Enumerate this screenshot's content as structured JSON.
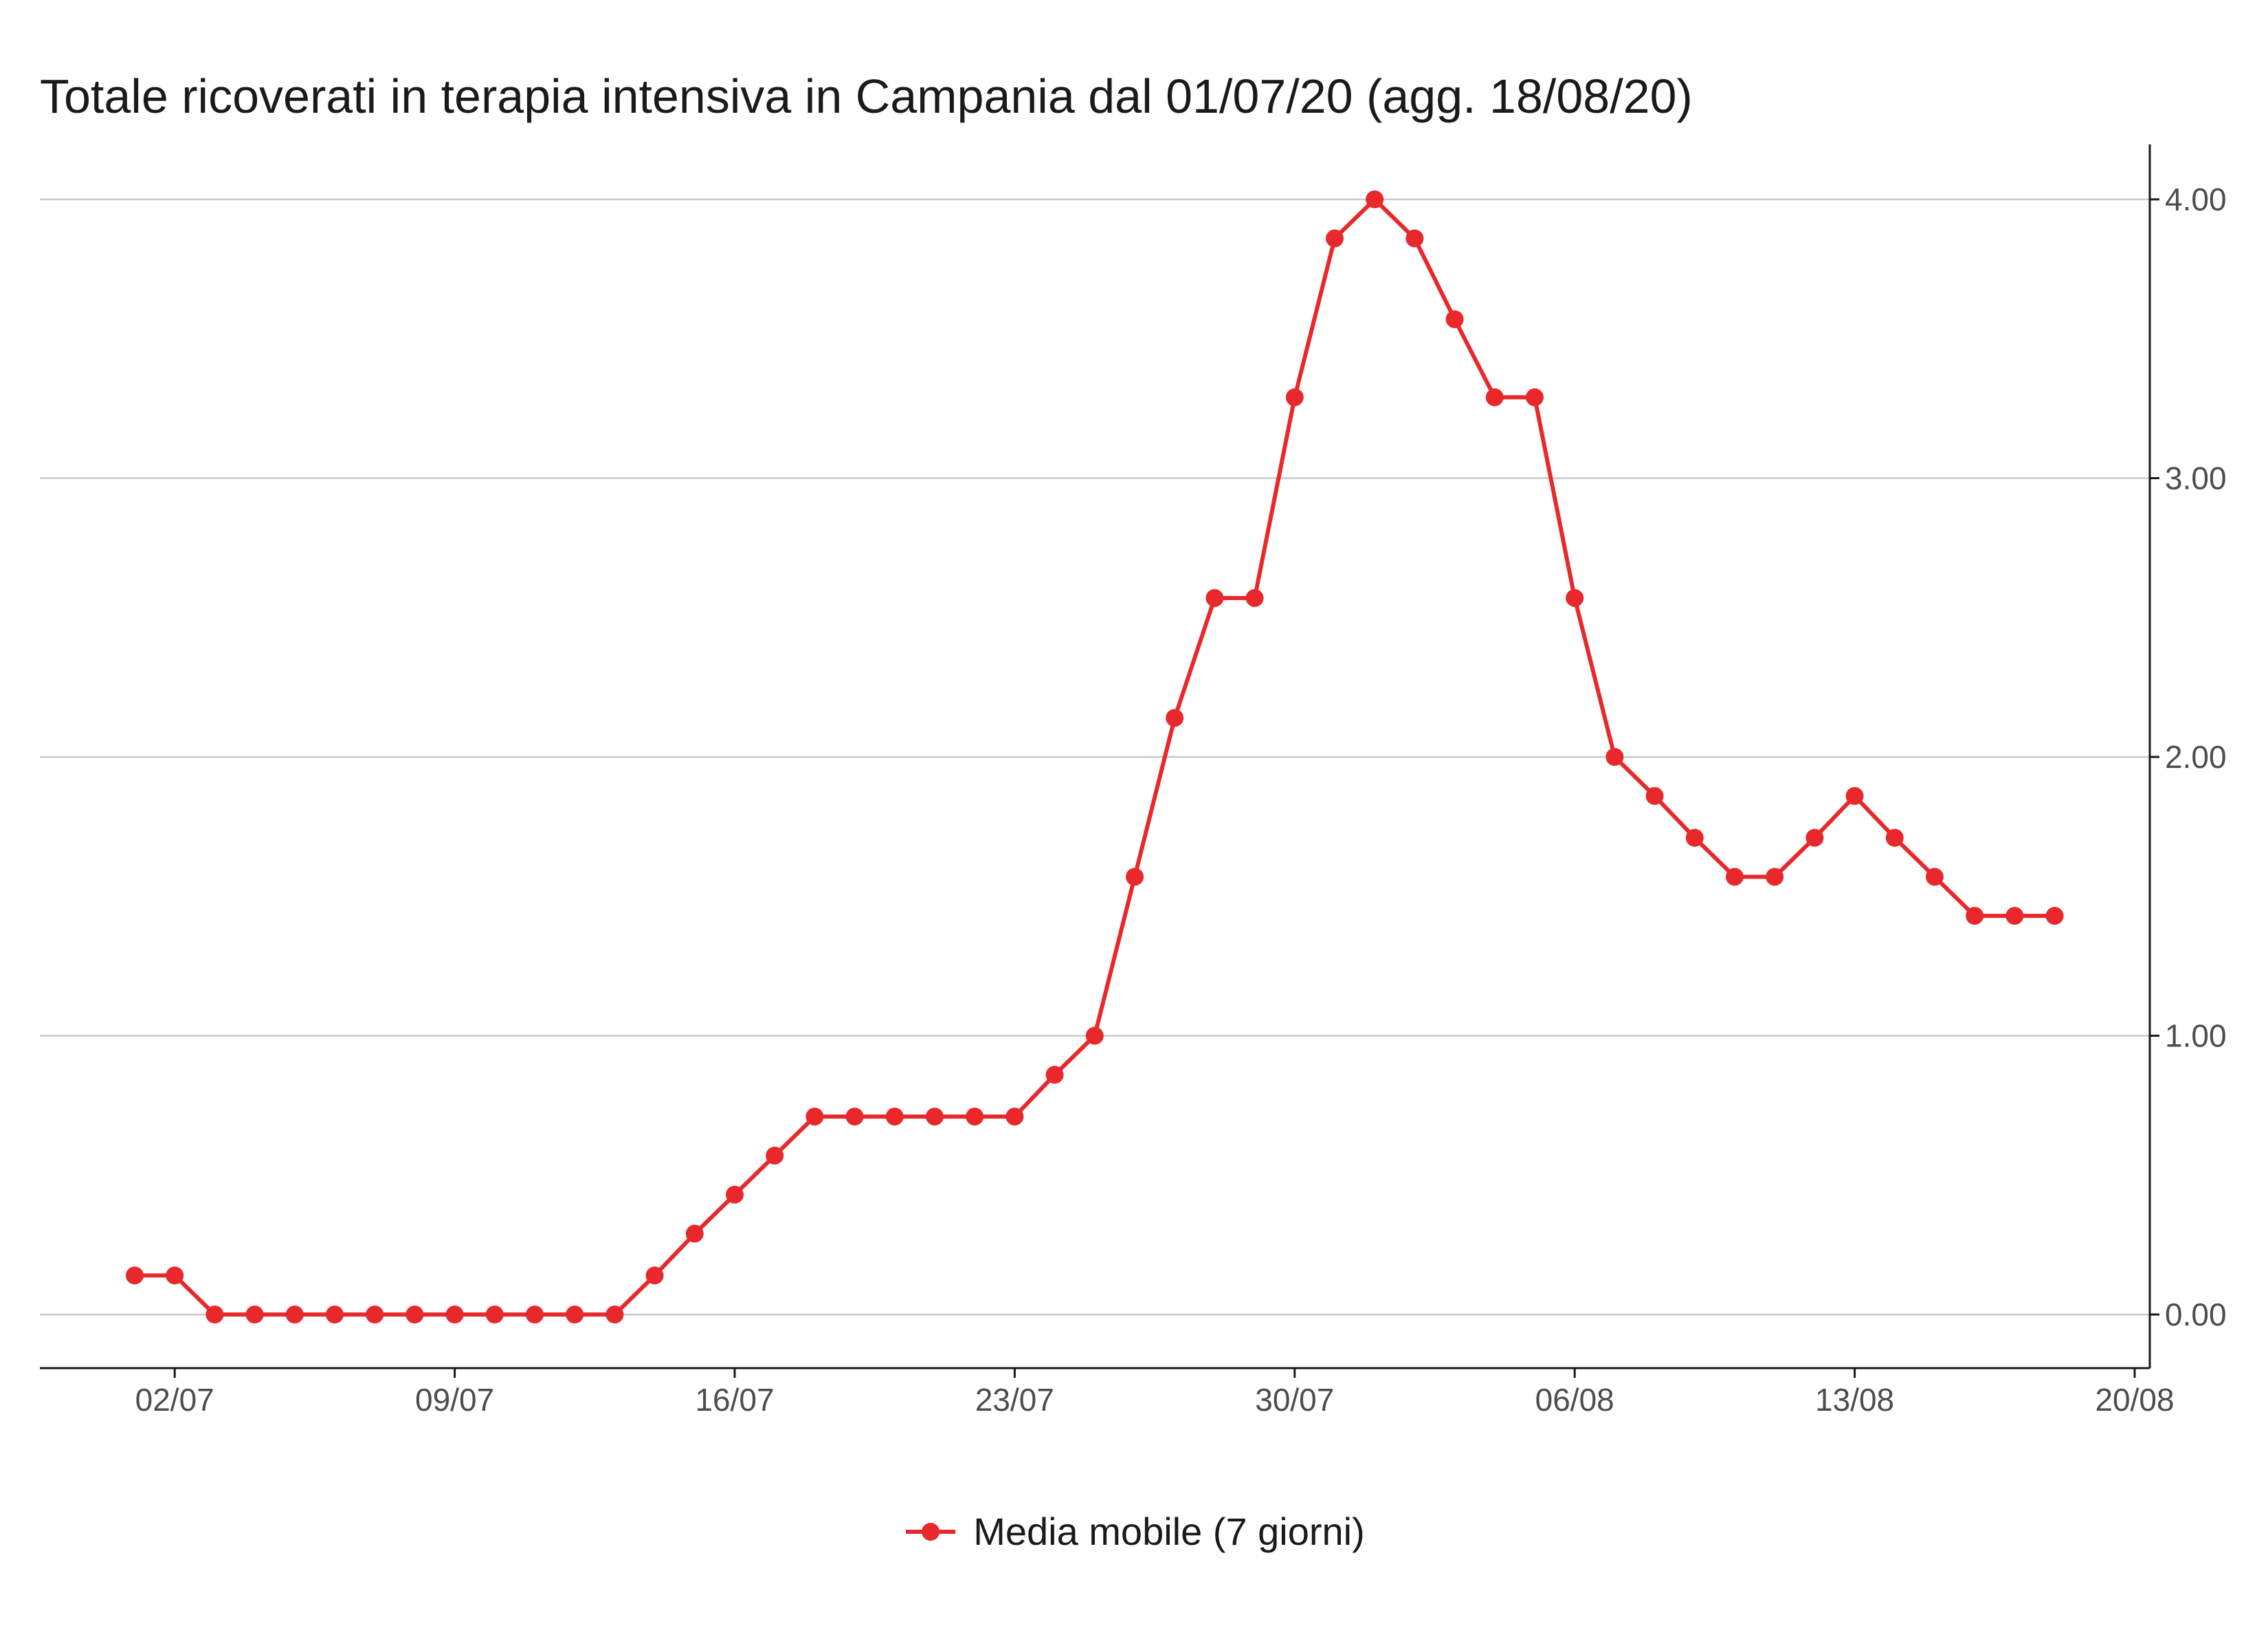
{
  "chart_data": {
    "type": "line",
    "title": "Totale ricoverati in terapia intensiva in Campania dal 01/07/20 (agg. 18/08/20)",
    "xlabel": "",
    "ylabel": "",
    "x_start": "01/07/2020",
    "x_ticks": [
      "02/07",
      "09/07",
      "16/07",
      "23/07",
      "30/07",
      "06/08",
      "13/08",
      "20/08"
    ],
    "y_ticks": [
      "0.00",
      "1.00",
      "2.00",
      "3.00",
      "4.00"
    ],
    "ylim": [
      0,
      4
    ],
    "y_axis_position": "right",
    "grid": true,
    "legend_position": "bottom",
    "color": "#e8282b",
    "x": [
      "01/07",
      "02/07",
      "03/07",
      "04/07",
      "05/07",
      "06/07",
      "07/07",
      "08/07",
      "09/07",
      "10/07",
      "11/07",
      "12/07",
      "13/07",
      "14/07",
      "15/07",
      "16/07",
      "17/07",
      "18/07",
      "19/07",
      "20/07",
      "21/07",
      "22/07",
      "23/07",
      "24/07",
      "25/07",
      "26/07",
      "27/07",
      "28/07",
      "29/07",
      "30/07",
      "31/07",
      "01/08",
      "02/08",
      "03/08",
      "04/08",
      "05/08",
      "06/08",
      "07/08",
      "08/08",
      "09/08",
      "10/08",
      "11/08",
      "12/08",
      "13/08",
      "14/08",
      "15/08",
      "16/08",
      "17/08",
      "18/08"
    ],
    "series": [
      {
        "name": "Media mobile (7 giorni)",
        "values": [
          0.14,
          0.14,
          0,
          0,
          0,
          0,
          0,
          0,
          0,
          0,
          0,
          0,
          0,
          0.14,
          0.29,
          0.43,
          0.57,
          0.71,
          0.71,
          0.71,
          0.71,
          0.71,
          0.71,
          0.86,
          1.0,
          1.57,
          2.14,
          2.57,
          2.57,
          3.29,
          3.86,
          4.0,
          3.86,
          3.57,
          3.29,
          3.29,
          2.57,
          2.0,
          1.86,
          1.71,
          1.57,
          1.57,
          1.71,
          1.86,
          1.71,
          1.57,
          1.43,
          1.43,
          1.43
        ]
      }
    ]
  }
}
